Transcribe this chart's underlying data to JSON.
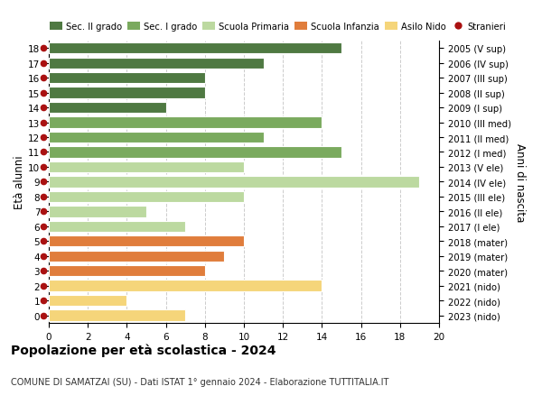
{
  "ages": [
    18,
    17,
    16,
    15,
    14,
    13,
    12,
    11,
    10,
    9,
    8,
    7,
    6,
    5,
    4,
    3,
    2,
    1,
    0
  ],
  "values": [
    15,
    11,
    8,
    8,
    6,
    14,
    11,
    15,
    10,
    19,
    10,
    5,
    7,
    10,
    9,
    8,
    14,
    4,
    7
  ],
  "right_labels": [
    "2005 (V sup)",
    "2006 (IV sup)",
    "2007 (III sup)",
    "2008 (II sup)",
    "2009 (I sup)",
    "2010 (III med)",
    "2011 (II med)",
    "2012 (I med)",
    "2013 (V ele)",
    "2014 (IV ele)",
    "2015 (III ele)",
    "2016 (II ele)",
    "2017 (I ele)",
    "2018 (mater)",
    "2019 (mater)",
    "2020 (mater)",
    "2021 (nido)",
    "2022 (nido)",
    "2023 (nido)"
  ],
  "bar_colors": [
    "#4f7942",
    "#4f7942",
    "#4f7942",
    "#4f7942",
    "#4f7942",
    "#7aaa5e",
    "#7aaa5e",
    "#7aaa5e",
    "#bcd9a0",
    "#bcd9a0",
    "#bcd9a0",
    "#bcd9a0",
    "#bcd9a0",
    "#e07d3c",
    "#e07d3c",
    "#e07d3c",
    "#f5d57a",
    "#f5d57a",
    "#f5d57a"
  ],
  "stranieri_dots": true,
  "dot_color": "#aa1111",
  "legend_entries": [
    {
      "label": "Sec. II grado",
      "color": "#4f7942"
    },
    {
      "label": "Sec. I grado",
      "color": "#7aaa5e"
    },
    {
      "label": "Scuola Primaria",
      "color": "#bcd9a0"
    },
    {
      "label": "Scuola Infanzia",
      "color": "#e07d3c"
    },
    {
      "label": "Asilo Nido",
      "color": "#f5d57a"
    },
    {
      "label": "Stranieri",
      "color": "#aa1111"
    }
  ],
  "ylabel": "Età alunni",
  "right_ylabel": "Anni di nascita",
  "title": "Popolazione per età scolastica - 2024",
  "subtitle": "COMUNE DI SAMATZAI (SU) - Dati ISTAT 1° gennaio 2024 - Elaborazione TUTTITALIA.IT",
  "xlim": [
    0,
    20
  ],
  "xticks": [
    0,
    2,
    4,
    6,
    8,
    10,
    12,
    14,
    16,
    18,
    20
  ],
  "background_color": "#ffffff",
  "grid_color": "#cccccc",
  "bar_height": 0.75
}
